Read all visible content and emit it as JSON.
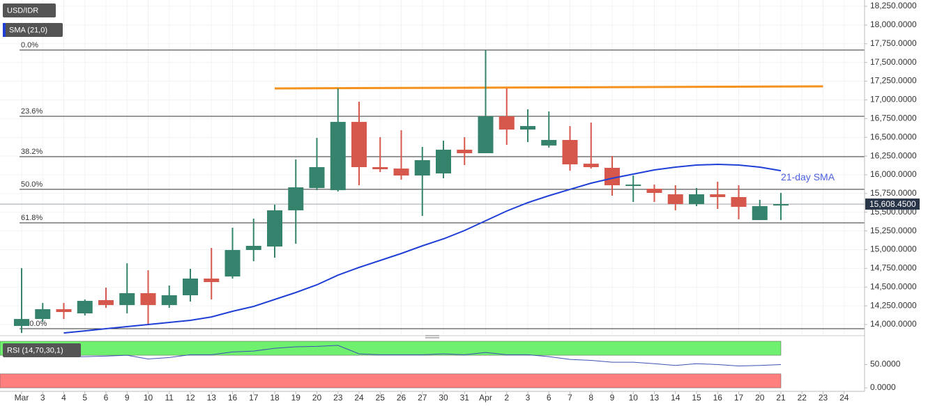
{
  "chart_data": {
    "type": "candlestick",
    "title": "USD/IDR",
    "categories": [
      "Mar",
      "3",
      "4",
      "5",
      "6",
      "9",
      "10",
      "11",
      "12",
      "13",
      "16",
      "17",
      "18",
      "19",
      "20",
      "23",
      "24",
      "25",
      "26",
      "27",
      "30",
      "31",
      "Apr",
      "2",
      "3",
      "6",
      "7",
      "8",
      "9",
      "10",
      "13",
      "14",
      "15",
      "16",
      "17",
      "20",
      "21",
      "22",
      "23",
      "24"
    ],
    "open": [
      13981,
      14074,
      14205,
      14149,
      14326,
      14260,
      14419,
      14260,
      14391,
      14614,
      14642,
      14995,
      15042,
      15525,
      15823,
      15795,
      16706,
      16102,
      16083,
      15990,
      16018,
      16335,
      16288,
      16781,
      16604,
      16391,
      16465,
      16148,
      16093,
      15860,
      15814,
      15739,
      15609,
      15739,
      15702,
      15395,
      15590,
      null,
      null,
      null
    ],
    "high": [
      14753,
      14288,
      14288,
      14335,
      14493,
      14818,
      14725,
      14521,
      14744,
      15023,
      15293,
      15414,
      15600,
      16204,
      16493,
      17153,
      16976,
      16502,
      16595,
      16372,
      16455,
      16502,
      17665,
      17153,
      16874,
      16846,
      16651,
      16697,
      16251,
      15990,
      15869,
      15860,
      15823,
      15907,
      15860,
      15665,
      15758,
      null,
      null,
      null
    ],
    "low": [
      13888,
      14037,
      14074,
      14121,
      14223,
      14149,
      13991,
      14223,
      14307,
      14335,
      14614,
      14846,
      14893,
      15079,
      15795,
      15776,
      15860,
      16037,
      15934,
      15451,
      15953,
      16130,
      16288,
      16400,
      16437,
      16363,
      16055,
      16083,
      15721,
      15637,
      15637,
      15525,
      15581,
      15544,
      15405,
      15395,
      15395,
      null,
      null,
      null
    ],
    "close": [
      14074,
      14205,
      14167,
      14316,
      14260,
      14419,
      14260,
      14391,
      14614,
      14567,
      14995,
      15051,
      15525,
      15832,
      16102,
      16706,
      16102,
      16074,
      15990,
      16195,
      16335,
      16288,
      16781,
      16604,
      16651,
      16465,
      16139,
      16102,
      15860,
      15869,
      15758,
      15609,
      15739,
      15702,
      15572,
      15581,
      15608.45,
      null,
      null,
      null
    ],
    "up_color": "#35836d",
    "down_color": "#d6574b",
    "series": [
      {
        "name": "SMA (21,0)",
        "color": "#1f3fd6",
        "values": [
          null,
          null,
          13888,
          13916,
          13944,
          13972,
          14000,
          14028,
          14056,
          14102,
          14177,
          14242,
          14335,
          14428,
          14530,
          14660,
          14763,
          14856,
          14949,
          15051,
          15144,
          15256,
          15386,
          15516,
          15628,
          15721,
          15805,
          15888,
          15953,
          16009,
          16065,
          16102,
          16130,
          16139,
          16130,
          16102,
          16055,
          null,
          null,
          null
        ]
      }
    ],
    "annotation": {
      "text": "21-day SMA",
      "color": "#4a5fe0"
    },
    "fib_levels": [
      {
        "label": "0.0%",
        "value": 17665
      },
      {
        "label": "23.6%",
        "value": 16781
      },
      {
        "label": "38.2%",
        "value": 16242
      },
      {
        "label": "50.0%",
        "value": 15805
      },
      {
        "label": "61.8%",
        "value": 15358
      },
      {
        "label": "100.0%",
        "value": 13944
      }
    ],
    "resistance": {
      "color": "#f5921e",
      "values": [
        17153,
        17181
      ]
    },
    "last_price": {
      "value": 15608.45,
      "label": "15,608.4500"
    },
    "ylim": [
      13870,
      18334
    ],
    "yticks": [
      {
        "value": 14000,
        "label": "14,000.0000"
      },
      {
        "value": 14250,
        "label": "14,250.0000"
      },
      {
        "value": 14500,
        "label": "14,500.0000"
      },
      {
        "value": 14750,
        "label": "14,750.0000"
      },
      {
        "value": 15000,
        "label": "15,000.0000"
      },
      {
        "value": 15250,
        "label": "15,250.0000"
      },
      {
        "value": 15500,
        "label": "15,500.0000"
      },
      {
        "value": 15750,
        "label": "15,750.0000"
      },
      {
        "value": 16000,
        "label": "16,000.0000"
      },
      {
        "value": 16250,
        "label": "16,250.0000"
      },
      {
        "value": 16500,
        "label": "16,500.0000"
      },
      {
        "value": 16750,
        "label": "16,750.0000"
      },
      {
        "value": 17000,
        "label": "17,000.0000"
      },
      {
        "value": 17250,
        "label": "17,250.0000"
      },
      {
        "value": 17500,
        "label": "17,500.0000"
      },
      {
        "value": 17750,
        "label": "17,750.0000"
      },
      {
        "value": 18000,
        "label": "18,000.0000"
      },
      {
        "value": 18250,
        "label": "18,250.0000"
      }
    ],
    "grid": true,
    "rsi": {
      "label": "RSI (14,70,30,1)",
      "color": "#3f51b5",
      "values": [
        68,
        67,
        67,
        67,
        68,
        70,
        62,
        65,
        71,
        71,
        77,
        79,
        85,
        88,
        89,
        91,
        73,
        71,
        71,
        71,
        73,
        71,
        76,
        71,
        71,
        67,
        61,
        59,
        55,
        55,
        52,
        48,
        52,
        50,
        47,
        48,
        50,
        null,
        null,
        null
      ],
      "ylim": [
        -6,
        103
      ],
      "yticks": [
        {
          "value": 0,
          "label": "0.0000"
        },
        {
          "value": 50,
          "label": "50.0000"
        }
      ],
      "bands": [
        {
          "range": [
            70,
            100
          ],
          "color": "#6ff06f"
        },
        {
          "range": [
            0,
            30
          ],
          "color": "#ff7f7f"
        }
      ]
    }
  }
}
